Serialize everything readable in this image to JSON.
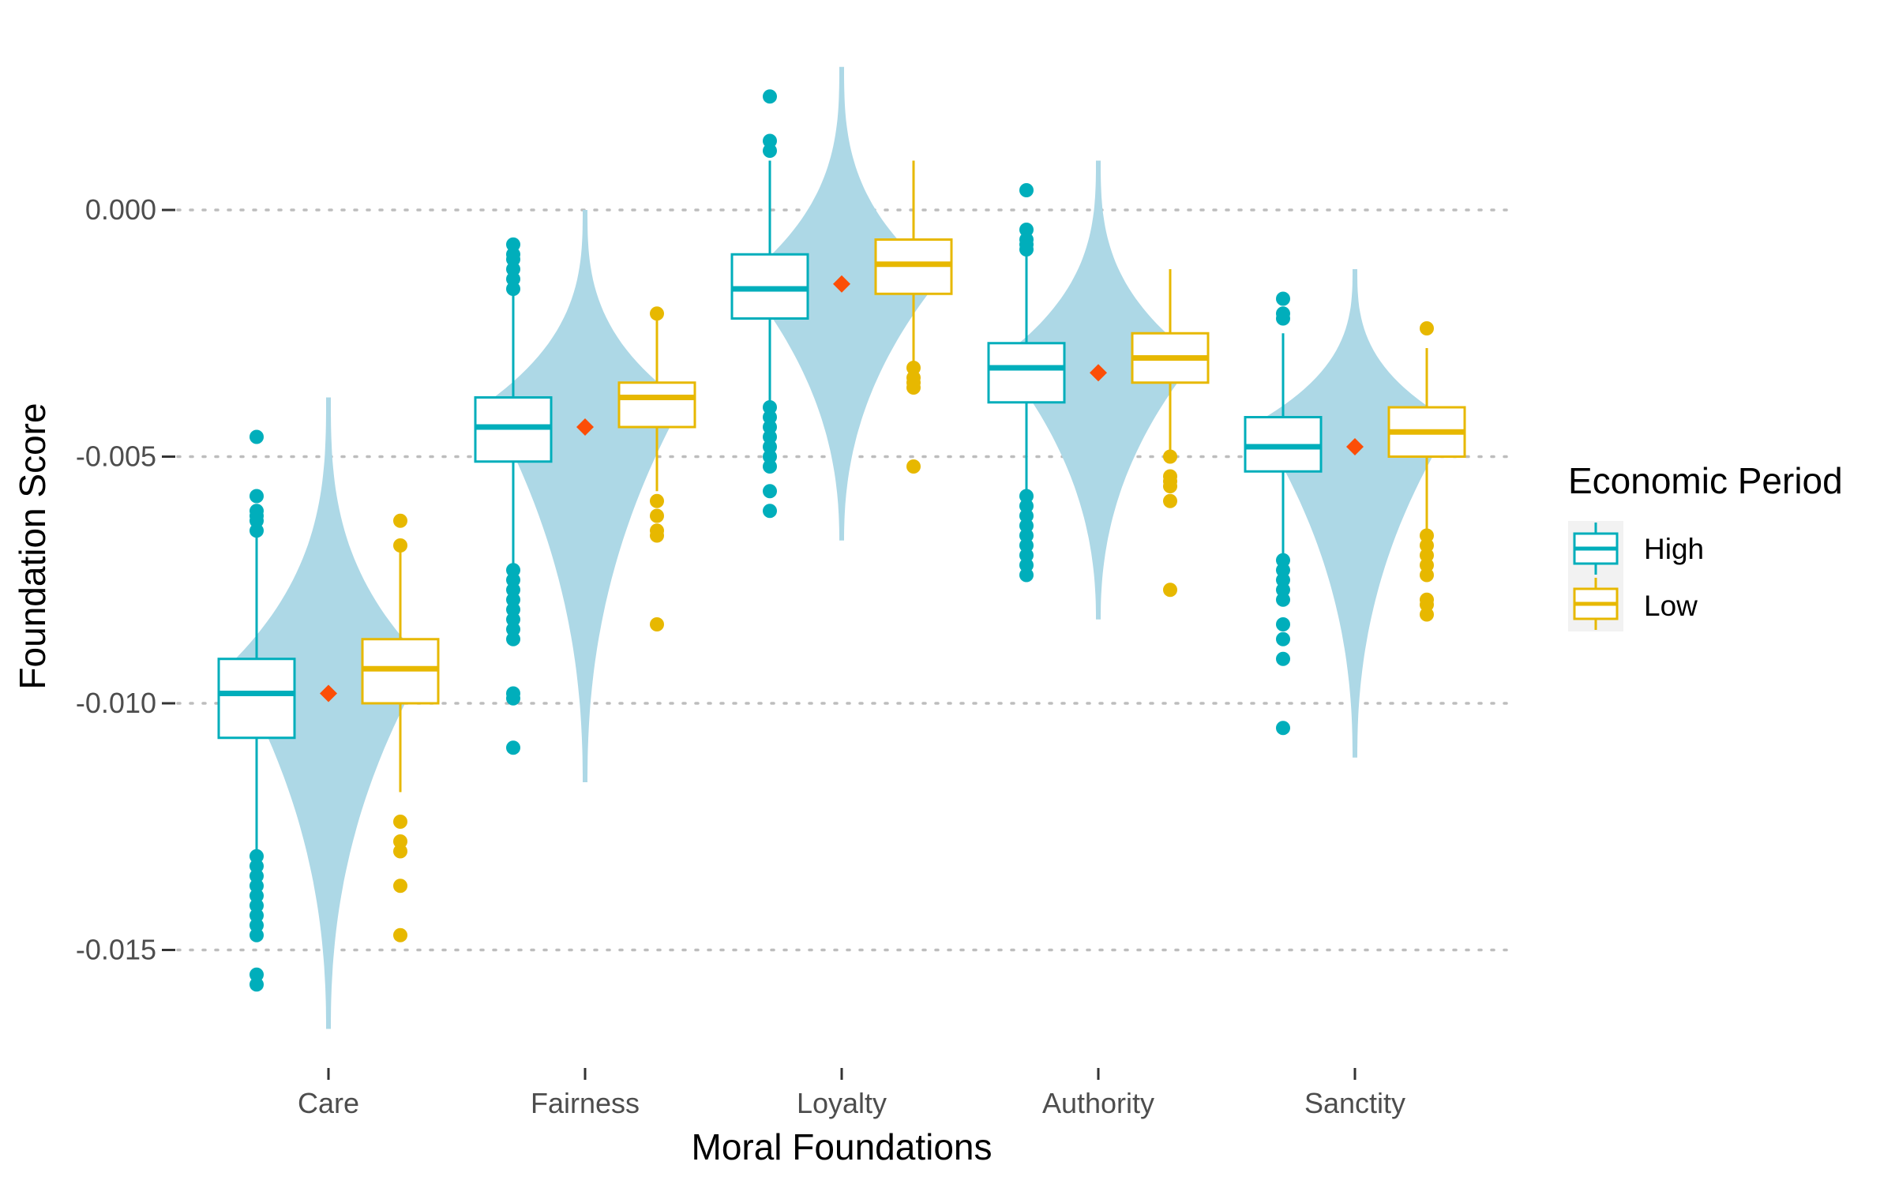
{
  "chart_data": {
    "type": "box",
    "overlay": "violin",
    "xlabel": "Moral Foundations",
    "ylabel": "Foundation Score",
    "ylim": [
      -0.0168,
      0.0031
    ],
    "yticks": [
      {
        "value": 0.0,
        "label": "0.000"
      },
      {
        "value": -0.005,
        "label": "-0.005"
      },
      {
        "value": -0.01,
        "label": "-0.010"
      },
      {
        "value": -0.015,
        "label": "-0.015"
      }
    ],
    "grid": "horizontal dotted at major y ticks",
    "legend": {
      "title": "Economic Period",
      "position": "right"
    },
    "colors": {
      "High": "#00aebb",
      "Low": "#e7b800",
      "violin": "#add8e6",
      "mean": "#fc4e07"
    },
    "categories": [
      "Care",
      "Fairness",
      "Loyalty",
      "Authority",
      "Sanctity"
    ],
    "violins": [
      {
        "min": -0.0166,
        "max": -0.0038,
        "mode": -0.0092,
        "mean": -0.0098
      },
      {
        "min": -0.0116,
        "max": 0.0,
        "mode": -0.0039,
        "mean": -0.0044
      },
      {
        "min": -0.0067,
        "max": 0.0029,
        "mode": -0.0014,
        "mean": -0.0015
      },
      {
        "min": -0.0083,
        "max": 0.001,
        "mode": -0.003,
        "mean": -0.0033
      },
      {
        "min": -0.0111,
        "max": -0.0012,
        "mode": -0.0043,
        "mean": -0.0048
      }
    ],
    "series": [
      {
        "name": "High",
        "boxes": [
          {
            "whisker_low": -0.0131,
            "q1": -0.0107,
            "median": -0.0098,
            "q3": -0.0091,
            "whisker_high": -0.0066,
            "outliers": [
              -0.0046,
              -0.0058,
              -0.0061,
              -0.0062,
              -0.0063,
              -0.0065,
              -0.0131,
              -0.0133,
              -0.0135,
              -0.0137,
              -0.0139,
              -0.0141,
              -0.0143,
              -0.0145,
              -0.0147,
              -0.0155,
              -0.0157
            ]
          },
          {
            "whisker_low": -0.0073,
            "q1": -0.0051,
            "median": -0.0044,
            "q3": -0.0038,
            "whisker_high": -0.0017,
            "outliers": [
              -0.0007,
              -0.0009,
              -0.001,
              -0.0012,
              -0.0014,
              -0.0016,
              -0.0073,
              -0.0075,
              -0.0077,
              -0.0079,
              -0.0081,
              -0.0083,
              -0.0085,
              -0.0087,
              -0.0098,
              -0.0099,
              -0.0109
            ]
          },
          {
            "whisker_low": -0.004,
            "q1": -0.0022,
            "median": -0.0016,
            "q3": -0.0009,
            "whisker_high": 0.001,
            "outliers": [
              0.0023,
              0.0014,
              0.0012,
              -0.004,
              -0.0042,
              -0.0044,
              -0.0046,
              -0.0048,
              -0.005,
              -0.0052,
              -0.0057,
              -0.0061
            ]
          },
          {
            "whisker_low": -0.0058,
            "q1": -0.0039,
            "median": -0.0032,
            "q3": -0.0027,
            "whisker_high": -0.0006,
            "outliers": [
              0.0004,
              -0.0004,
              -0.0006,
              -0.0007,
              -0.0008,
              -0.0058,
              -0.006,
              -0.0062,
              -0.0064,
              -0.0066,
              -0.0068,
              -0.007,
              -0.0072,
              -0.0074
            ]
          },
          {
            "whisker_low": -0.0071,
            "q1": -0.0053,
            "median": -0.0048,
            "q3": -0.0042,
            "whisker_high": -0.0025,
            "outliers": [
              -0.0018,
              -0.0021,
              -0.0022,
              -0.0071,
              -0.0073,
              -0.0075,
              -0.0077,
              -0.0079,
              -0.0084,
              -0.0087,
              -0.0091,
              -0.0105
            ]
          }
        ]
      },
      {
        "name": "Low",
        "boxes": [
          {
            "whisker_low": -0.0118,
            "q1": -0.01,
            "median": -0.0093,
            "q3": -0.0087,
            "whisker_high": -0.0068,
            "outliers": [
              -0.0063,
              -0.0068,
              -0.0124,
              -0.0128,
              -0.013,
              -0.0137,
              -0.0147
            ]
          },
          {
            "whisker_low": -0.0057,
            "q1": -0.0044,
            "median": -0.0038,
            "q3": -0.0035,
            "whisker_high": -0.0021,
            "outliers": [
              -0.0021,
              -0.0059,
              -0.0062,
              -0.0065,
              -0.0066,
              -0.0084
            ]
          },
          {
            "whisker_low": -0.0031,
            "q1": -0.0017,
            "median": -0.0011,
            "q3": -0.0006,
            "whisker_high": 0.001,
            "outliers": [
              -0.0032,
              -0.0034,
              -0.0035,
              -0.0036,
              -0.0052
            ]
          },
          {
            "whisker_low": -0.0049,
            "q1": -0.0035,
            "median": -0.003,
            "q3": -0.0025,
            "whisker_high": -0.0012,
            "outliers": [
              -0.005,
              -0.0054,
              -0.0055,
              -0.0056,
              -0.0059,
              -0.0077
            ]
          },
          {
            "whisker_low": -0.0066,
            "q1": -0.005,
            "median": -0.0045,
            "q3": -0.004,
            "whisker_high": -0.0028,
            "outliers": [
              -0.0024,
              -0.0066,
              -0.0068,
              -0.007,
              -0.0072,
              -0.0074,
              -0.0079,
              -0.008,
              -0.0082
            ]
          }
        ]
      }
    ]
  }
}
